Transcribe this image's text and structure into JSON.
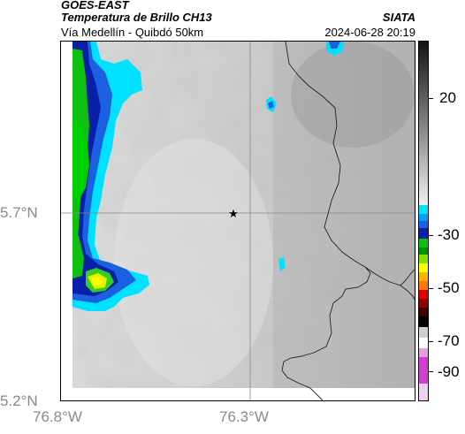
{
  "header": {
    "satellite": "GOES-EAST",
    "product": "Temperatura de Brillo CH13",
    "region": "Vía Medellín - Quibdó 50km",
    "institution": "SIATA",
    "datetime": "2024-06-28 20:19"
  },
  "map": {
    "lon_ticks": [
      "76.8°W",
      "76.3°W"
    ],
    "lat_ticks": [
      "5.7°N",
      "5.2°N"
    ],
    "marker": "star"
  },
  "colorbar": {
    "labels": [
      "20",
      "-30",
      "-50",
      "-70",
      "-90"
    ],
    "values": [
      20,
      -30,
      -50,
      -70,
      -90
    ],
    "range": [
      -95,
      40
    ],
    "colors": {
      "warm_gray_top": "#111111",
      "warm_gray_bottom": "#f0f0f0",
      "cyan": "#00e5ff",
      "blue": "#0a1fa8",
      "green": "#10c010",
      "yellow": "#ffff00",
      "orange": "#ff7a00",
      "red": "#e00000",
      "dark_red": "#400000",
      "magenta": "#d040d0"
    }
  },
  "icons": {
    "marker": "star-marker-icon"
  }
}
